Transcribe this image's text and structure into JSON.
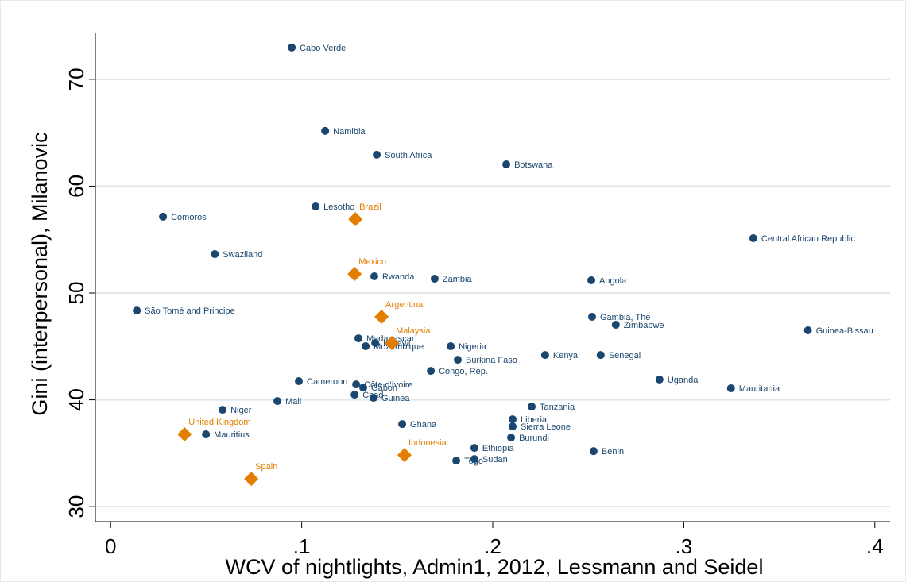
{
  "chart_data": {
    "type": "scatter",
    "x_label": "WCV of nightlights, Admin1, 2012, Lessmann and Seidel",
    "y_label": "Gini (interpersonal), Milanovic",
    "xlim": [
      -0.008,
      0.408
    ],
    "ylim": [
      28.6,
      74.3
    ],
    "xticks": [
      0,
      {
        "value": 0.1,
        "label": ".1"
      },
      {
        "value": 0.2,
        "label": ".2"
      },
      {
        "value": 0.3,
        "label": ".3"
      },
      {
        "value": 0.4,
        "label": ".4"
      }
    ],
    "yticks": [
      30,
      40,
      50,
      60,
      70
    ],
    "grid": true,
    "series": [
      {
        "color": "#1a476f",
        "marker": "circle",
        "labels": [
          "Cabo Verde",
          "Namibia",
          "South Africa",
          "Botswana",
          "Comoros",
          "Lesotho",
          "Central African Republic",
          "Swaziland",
          "Rwanda",
          "Zambia",
          "Angola",
          "São Tomé and Principe",
          "Gambia, The",
          "Zimbabwe",
          "Guinea-Bissau",
          "Madagascar",
          "Mozambique",
          "Malawi",
          "Nigeria",
          "Kenya",
          "Senegal",
          "Burkina Faso",
          "Congo, Rep.",
          "Uganda",
          "Mauritania",
          "Cameroon",
          "Côte d'Ivoire",
          "Gabon",
          "Chad",
          "Guinea",
          "Mali",
          "Tanzania",
          "Niger",
          "Liberia",
          "Sierra Leone",
          "Ghana",
          "Mauritius",
          "Burundi",
          "Ethiopia",
          "Benin",
          "Togo",
          "Sudan"
        ],
        "x": [
          0.0948,
          0.1123,
          0.1393,
          0.2071,
          0.0274,
          0.1073,
          0.3364,
          0.0545,
          0.138,
          0.1696,
          0.2516,
          0.0137,
          0.252,
          0.2644,
          0.365,
          0.1297,
          0.1335,
          0.1385,
          0.178,
          0.2274,
          0.2565,
          0.1817,
          0.1676,
          0.2873,
          0.3247,
          0.0985,
          0.1285,
          0.1322,
          0.1277,
          0.1376,
          0.0873,
          0.2204,
          0.0586,
          0.2104,
          0.2104,
          0.1526,
          0.0499,
          0.2096,
          0.1904,
          0.2528,
          0.1809,
          0.1904
        ],
        "y": [
          72.97,
          65.17,
          62.94,
          62.04,
          57.14,
          58.1,
          55.13,
          53.64,
          51.56,
          51.34,
          51.19,
          48.36,
          47.77,
          47.03,
          46.51,
          45.76,
          45.02,
          45.32,
          45.02,
          44.2,
          44.2,
          43.75,
          42.71,
          41.9,
          41.08,
          41.75,
          41.45,
          41.15,
          40.48,
          40.19,
          39.89,
          39.37,
          39.07,
          38.18,
          37.51,
          37.73,
          36.77,
          36.47,
          35.5,
          35.2,
          34.31,
          34.46
        ]
      },
      {
        "color": "#e37e00",
        "marker": "diamond",
        "labels": [
          "Brazil",
          "Mexico",
          "Argentina",
          "Malaysia",
          "United Kingdom",
          "Indonesia",
          "Spain"
        ],
        "x": [
          0.1281,
          0.1277,
          0.1418,
          0.1472,
          0.0387,
          0.1538,
          0.0736
        ],
        "y": [
          56.91,
          51.78,
          47.77,
          45.32,
          36.77,
          34.83,
          32.6
        ]
      }
    ]
  }
}
